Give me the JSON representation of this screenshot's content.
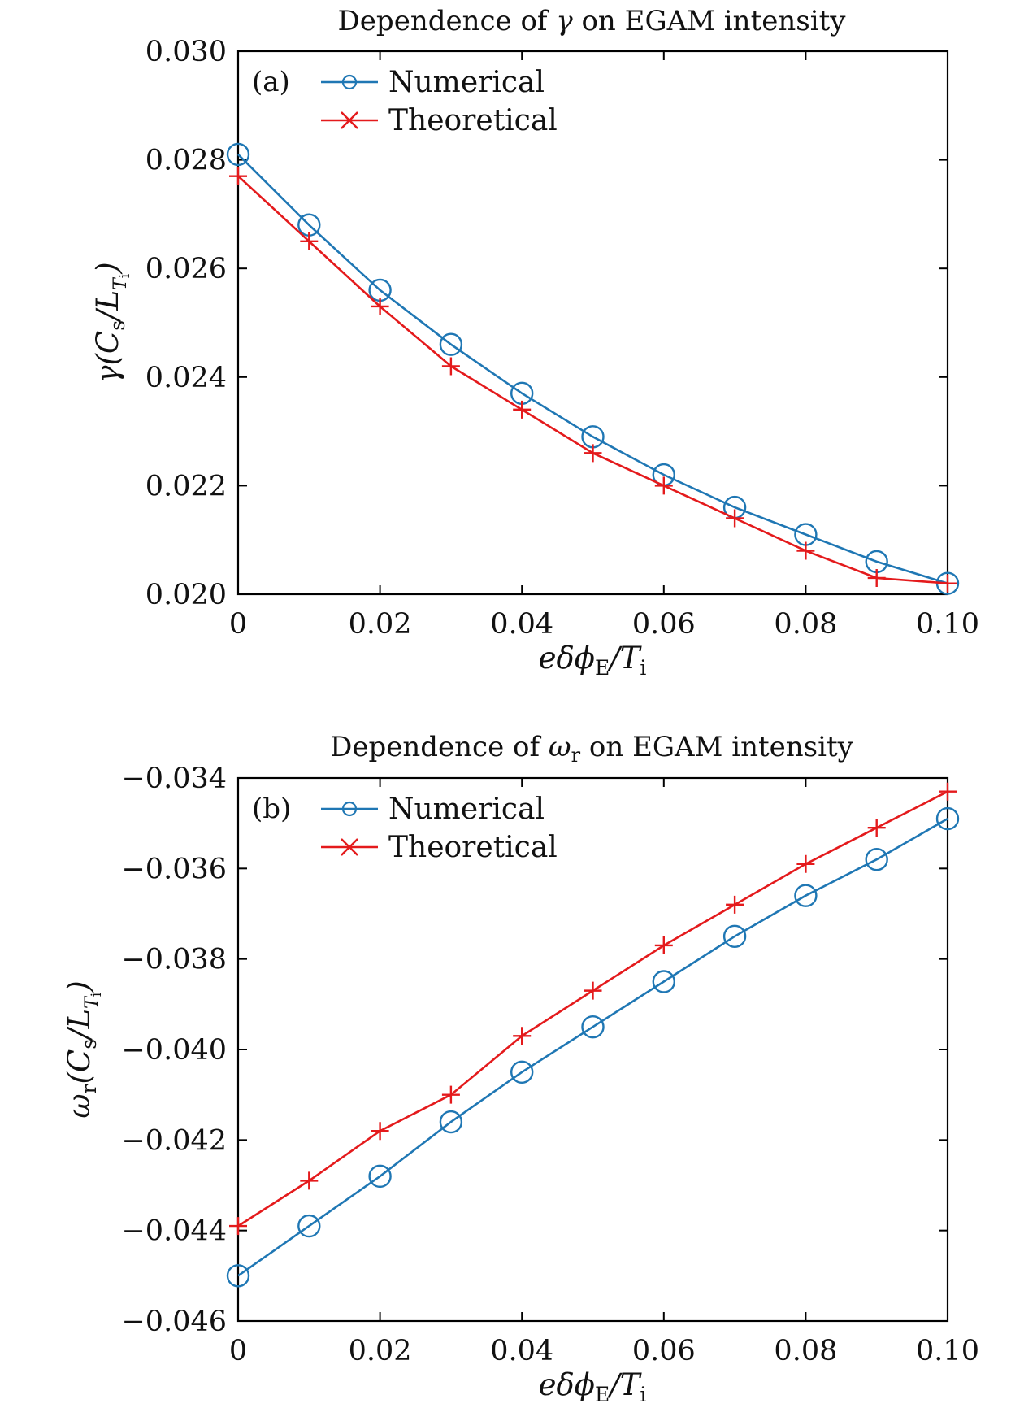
{
  "chart_data": [
    {
      "type": "line",
      "panel": "(a)",
      "title": "Dependence of γ on EGAM intensity",
      "xlabel": "eδϕE/Ti",
      "ylabel": "γ(Cs/LTi)",
      "xlim": [
        0,
        0.1
      ],
      "ylim": [
        0.02,
        0.03
      ],
      "x": [
        0,
        0.01,
        0.02,
        0.03,
        0.04,
        0.05,
        0.06,
        0.07,
        0.08,
        0.09,
        0.1
      ],
      "x_ticks": [
        "0",
        "0.02",
        "0.04",
        "0.06",
        "0.08",
        "0.10"
      ],
      "y_ticks": [
        "0.020",
        "0.022",
        "0.024",
        "0.026",
        "0.028",
        "0.030"
      ],
      "legend_position": "top-left",
      "grid": false,
      "series": [
        {
          "name": "Numerical",
          "marker": "circle",
          "color": "#1f77b4",
          "values": [
            0.0281,
            0.0268,
            0.0256,
            0.0246,
            0.0237,
            0.0229,
            0.0222,
            0.0216,
            0.0211,
            0.0206,
            0.0202
          ]
        },
        {
          "name": "Theoretical",
          "marker": "cross",
          "color": "#e41a1c",
          "values": [
            0.0277,
            0.0265,
            0.0253,
            0.0242,
            0.0234,
            0.0226,
            0.022,
            0.0214,
            0.0208,
            0.0203,
            0.0202
          ]
        }
      ]
    },
    {
      "type": "line",
      "panel": "(b)",
      "title": "Dependence of ωr on EGAM intensity",
      "xlabel": "eδϕE/Ti",
      "ylabel": "ωr(Cs/LTi)",
      "xlim": [
        0,
        0.1
      ],
      "ylim": [
        -0.046,
        -0.034
      ],
      "x": [
        0,
        0.01,
        0.02,
        0.03,
        0.04,
        0.05,
        0.06,
        0.07,
        0.08,
        0.09,
        0.1
      ],
      "x_ticks": [
        "0",
        "0.02",
        "0.04",
        "0.06",
        "0.08",
        "0.10"
      ],
      "y_ticks": [
        "−0.046",
        "−0.044",
        "−0.042",
        "−0.040",
        "−0.038",
        "−0.036",
        "−0.034"
      ],
      "legend_position": "top-left",
      "grid": false,
      "series": [
        {
          "name": "Numerical",
          "marker": "circle",
          "color": "#1f77b4",
          "values": [
            -0.045,
            -0.0439,
            -0.0428,
            -0.0416,
            -0.0405,
            -0.0395,
            -0.0385,
            -0.0375,
            -0.0366,
            -0.0358,
            -0.0349
          ]
        },
        {
          "name": "Theoretical",
          "marker": "cross",
          "color": "#e41a1c",
          "values": [
            -0.0439,
            -0.0429,
            -0.0418,
            -0.041,
            -0.0397,
            -0.0387,
            -0.0377,
            -0.0368,
            -0.0359,
            -0.0351,
            -0.0343
          ]
        }
      ]
    }
  ]
}
